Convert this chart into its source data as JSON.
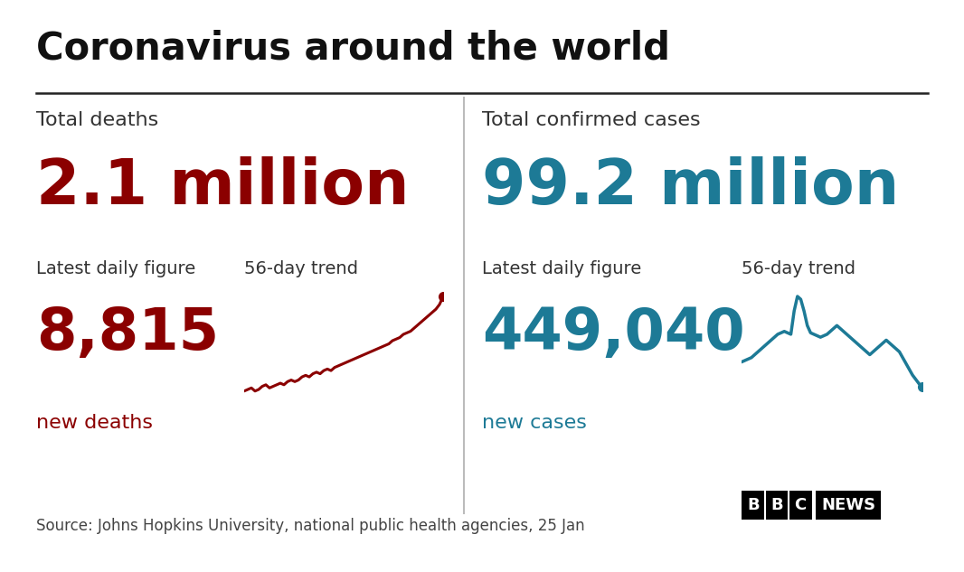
{
  "title": "Coronavirus around the world",
  "bg_color": "#ffffff",
  "title_color": "#111111",
  "divider_color": "#222222",
  "left_panel": {
    "label": "Total deaths",
    "big_number": "2.1 million",
    "big_color": "#8b0000",
    "daily_label": "Latest daily figure",
    "daily_value": "8,815",
    "daily_unit": "new deaths",
    "trend_label": "56-day trend",
    "trend_color": "#8b0000"
  },
  "right_panel": {
    "label": "Total confirmed cases",
    "big_number": "99.2 million",
    "big_color": "#1d7a96",
    "daily_label": "Latest daily figure",
    "daily_value": "449,040",
    "daily_unit": "new cases",
    "trend_label": "56-day trend",
    "trend_color": "#1d7a96"
  },
  "source_text": "Source: Johns Hopkins University, national public health agencies, 25 Jan",
  "bbc_text": "BBC",
  "news_text": "NEWS",
  "label_color": "#333333",
  "source_color": "#444444",
  "deaths_trend": [
    0.4,
    0.41,
    0.42,
    0.4,
    0.41,
    0.43,
    0.44,
    0.42,
    0.43,
    0.44,
    0.45,
    0.44,
    0.46,
    0.47,
    0.46,
    0.47,
    0.49,
    0.5,
    0.49,
    0.51,
    0.52,
    0.51,
    0.53,
    0.54,
    0.53,
    0.55,
    0.56,
    0.57,
    0.58,
    0.59,
    0.6,
    0.61,
    0.62,
    0.63,
    0.64,
    0.65,
    0.66,
    0.67,
    0.68,
    0.69,
    0.7,
    0.72,
    0.73,
    0.74,
    0.76,
    0.77,
    0.78,
    0.8,
    0.82,
    0.84,
    0.86,
    0.88,
    0.9,
    0.92,
    0.95,
    1.0
  ],
  "cases_trend": [
    0.55,
    0.56,
    0.57,
    0.58,
    0.6,
    0.62,
    0.64,
    0.66,
    0.68,
    0.7,
    0.72,
    0.74,
    0.75,
    0.76,
    0.75,
    0.74,
    0.9,
    1.0,
    0.98,
    0.9,
    0.8,
    0.75,
    0.74,
    0.73,
    0.72,
    0.73,
    0.74,
    0.76,
    0.78,
    0.8,
    0.78,
    0.76,
    0.74,
    0.72,
    0.7,
    0.68,
    0.66,
    0.64,
    0.62,
    0.6,
    0.62,
    0.64,
    0.66,
    0.68,
    0.7,
    0.68,
    0.66,
    0.64,
    0.62,
    0.58,
    0.54,
    0.5,
    0.46,
    0.43,
    0.4,
    0.38
  ]
}
